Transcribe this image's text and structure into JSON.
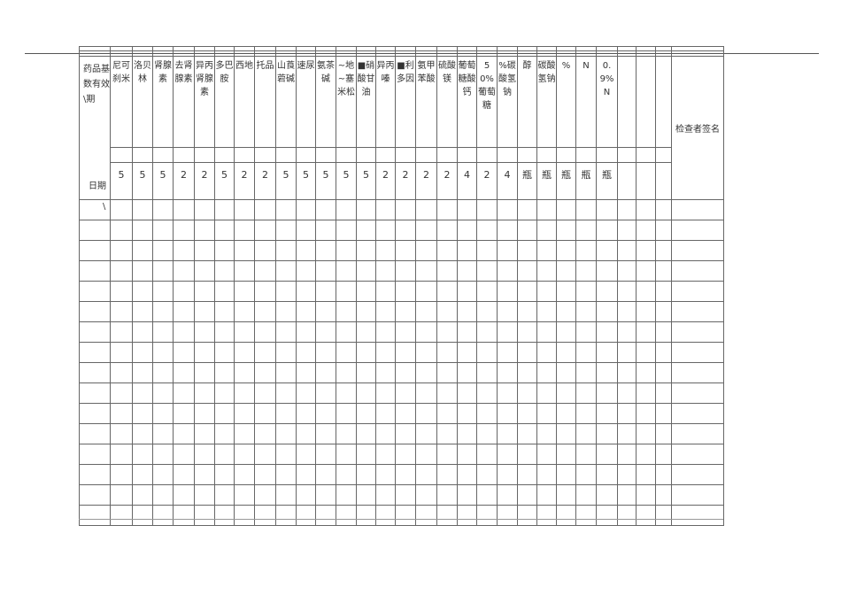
{
  "table": {
    "corner_label": "药品基数有效\\期",
    "date_label": "日期",
    "date_slash": "\\",
    "columns": [
      {
        "name": "尼可刹米",
        "qty": "5"
      },
      {
        "name": "洛贝林",
        "qty": "5"
      },
      {
        "name": "肾腺素",
        "qty": "5"
      },
      {
        "name": "去肾腺素",
        "qty": "2"
      },
      {
        "name": "异丙肾腺素",
        "qty": "2"
      },
      {
        "name": "多巴胺",
        "qty": "5"
      },
      {
        "name": "西地",
        "qty": "2"
      },
      {
        "name": "托品",
        "qty": "2"
      },
      {
        "name": "山莨菪碱",
        "qty": "5"
      },
      {
        "name": "速尿",
        "qty": "5"
      },
      {
        "name": "氨茶碱",
        "qty": "5"
      },
      {
        "name": "~地~塞米松",
        "qty": "5"
      },
      {
        "name": "■硝酸甘油",
        "qty": "5"
      },
      {
        "name": "异丙嗪",
        "qty": "2"
      },
      {
        "name": "■利多因",
        "qty": "2"
      },
      {
        "name": "氨甲苯酸",
        "qty": "2"
      },
      {
        "name": "硫酸镁",
        "qty": "2"
      },
      {
        "name": "葡萄糖酸钙",
        "qty": "4"
      },
      {
        "name": "50%葡萄糖",
        "qty": "2"
      },
      {
        "name": "%碳酸氢钠",
        "qty": "4"
      },
      {
        "name": "醇",
        "qty": "瓶"
      },
      {
        "name": "碳酸氢钠",
        "qty": "瓶"
      },
      {
        "name": "%",
        "qty": "瓶"
      },
      {
        "name": "N",
        "qty": "瓶"
      },
      {
        "name": "0.9%N",
        "qty": "瓶"
      },
      {
        "name": "",
        "qty": ""
      },
      {
        "name": "",
        "qty": ""
      },
      {
        "name": "",
        "qty": ""
      }
    ],
    "sign_label": "检查者签名",
    "data_row_count": 16
  }
}
